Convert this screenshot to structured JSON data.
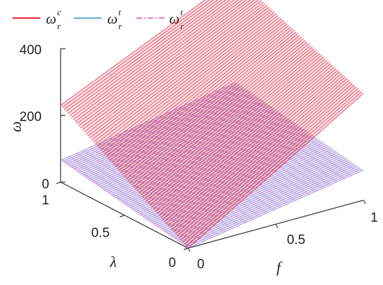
{
  "chart_data": {
    "type": "surface",
    "xlabel": "f",
    "ylabel": "λ",
    "zlabel": "ω_r",
    "xlim": [
      0,
      1
    ],
    "ylim": [
      0,
      1
    ],
    "zlim": [
      0,
      400
    ],
    "x_ticks": [
      "0",
      "0.5",
      "1"
    ],
    "y_ticks": [
      "0",
      "0.5",
      "1"
    ],
    "z_ticks": [
      "0",
      "200",
      "400"
    ],
    "legend_position": "top",
    "series": [
      {
        "name": "ω_r^c",
        "base": "ω",
        "subscript": "r",
        "superscript": "c",
        "color": "#e8203a",
        "line_style": "solid",
        "corners": {
          "f0_l0": 0,
          "f1_l0": 320,
          "f0_l1": 230,
          "f1_l1": 470
        }
      },
      {
        "name": "ω_r^t",
        "base": "ω",
        "subscript": "r",
        "superscript": "t",
        "color": "#5ab1c9",
        "line_style": "solid",
        "corners": {
          "f0_l0": 0,
          "f1_l0": 90,
          "f0_l1": 65,
          "f1_l1": 155
        }
      },
      {
        "name": "ω_r^t",
        "base": "ω",
        "subscript": "r",
        "superscript": "t",
        "color": "#d04fd8",
        "line_style": "dashdot",
        "corners": {
          "f0_l0": 0,
          "f1_l0": 90,
          "f0_l1": 65,
          "f1_l1": 155
        }
      }
    ]
  }
}
